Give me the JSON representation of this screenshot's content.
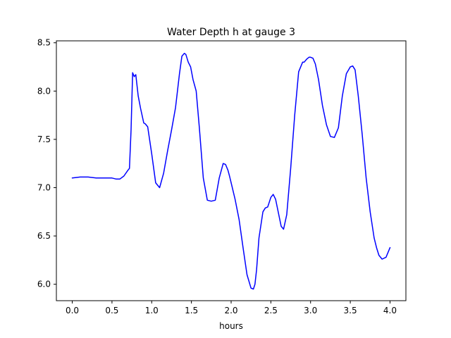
{
  "chart_data": {
    "type": "line",
    "title": "Water Depth h at gauge 3",
    "xlabel": "hours",
    "ylabel": "",
    "xlim": [
      -0.2,
      4.2
    ],
    "ylim": [
      5.83,
      8.52
    ],
    "xticks": [
      0.0,
      0.5,
      1.0,
      1.5,
      2.0,
      2.5,
      3.0,
      3.5,
      4.0
    ],
    "xtick_labels": [
      "0.0",
      "0.5",
      "1.0",
      "1.5",
      "2.0",
      "2.5",
      "3.0",
      "3.5",
      "4.0"
    ],
    "yticks": [
      6.0,
      6.5,
      7.0,
      7.5,
      8.0,
      8.5
    ],
    "ytick_labels": [
      "6.0",
      "6.5",
      "7.0",
      "7.5",
      "8.0",
      "8.5"
    ],
    "grid": false,
    "series": [
      {
        "color": "#0000ff",
        "x": [
          0.0,
          0.1,
          0.2,
          0.3,
          0.4,
          0.5,
          0.55,
          0.6,
          0.65,
          0.7,
          0.72,
          0.74,
          0.76,
          0.78,
          0.8,
          0.83,
          0.86,
          0.9,
          0.92,
          0.95,
          1.0,
          1.05,
          1.1,
          1.15,
          1.2,
          1.25,
          1.3,
          1.35,
          1.38,
          1.41,
          1.43,
          1.46,
          1.49,
          1.52,
          1.56,
          1.6,
          1.65,
          1.7,
          1.75,
          1.8,
          1.85,
          1.9,
          1.93,
          1.96,
          1.98,
          2.0,
          2.05,
          2.1,
          2.15,
          2.2,
          2.25,
          2.28,
          2.3,
          2.32,
          2.35,
          2.4,
          2.43,
          2.46,
          2.5,
          2.53,
          2.56,
          2.6,
          2.63,
          2.66,
          2.7,
          2.75,
          2.8,
          2.85,
          2.9,
          2.92,
          2.95,
          2.98,
          3.0,
          3.03,
          3.06,
          3.1,
          3.15,
          3.2,
          3.25,
          3.3,
          3.35,
          3.4,
          3.45,
          3.5,
          3.53,
          3.56,
          3.6,
          3.65,
          3.7,
          3.75,
          3.8,
          3.83,
          3.86,
          3.9,
          3.95,
          4.0
        ],
        "y": [
          7.1,
          7.11,
          7.11,
          7.1,
          7.1,
          7.1,
          7.09,
          7.09,
          7.12,
          7.18,
          7.2,
          7.6,
          8.19,
          8.15,
          8.17,
          7.95,
          7.82,
          7.67,
          7.66,
          7.63,
          7.35,
          7.05,
          7.0,
          7.15,
          7.38,
          7.6,
          7.83,
          8.18,
          8.36,
          8.39,
          8.38,
          8.3,
          8.25,
          8.12,
          8.0,
          7.62,
          7.1,
          6.87,
          6.86,
          6.87,
          7.1,
          7.25,
          7.24,
          7.18,
          7.12,
          7.05,
          6.88,
          6.67,
          6.38,
          6.1,
          5.96,
          5.95,
          6.0,
          6.15,
          6.48,
          6.75,
          6.79,
          6.8,
          6.9,
          6.93,
          6.88,
          6.72,
          6.6,
          6.57,
          6.72,
          7.2,
          7.75,
          8.2,
          8.3,
          8.3,
          8.33,
          8.35,
          8.35,
          8.34,
          8.28,
          8.12,
          7.85,
          7.65,
          7.53,
          7.52,
          7.62,
          7.95,
          8.18,
          8.25,
          8.26,
          8.22,
          7.95,
          7.55,
          7.1,
          6.75,
          6.48,
          6.38,
          6.3,
          6.26,
          6.28,
          6.38
        ]
      }
    ]
  }
}
